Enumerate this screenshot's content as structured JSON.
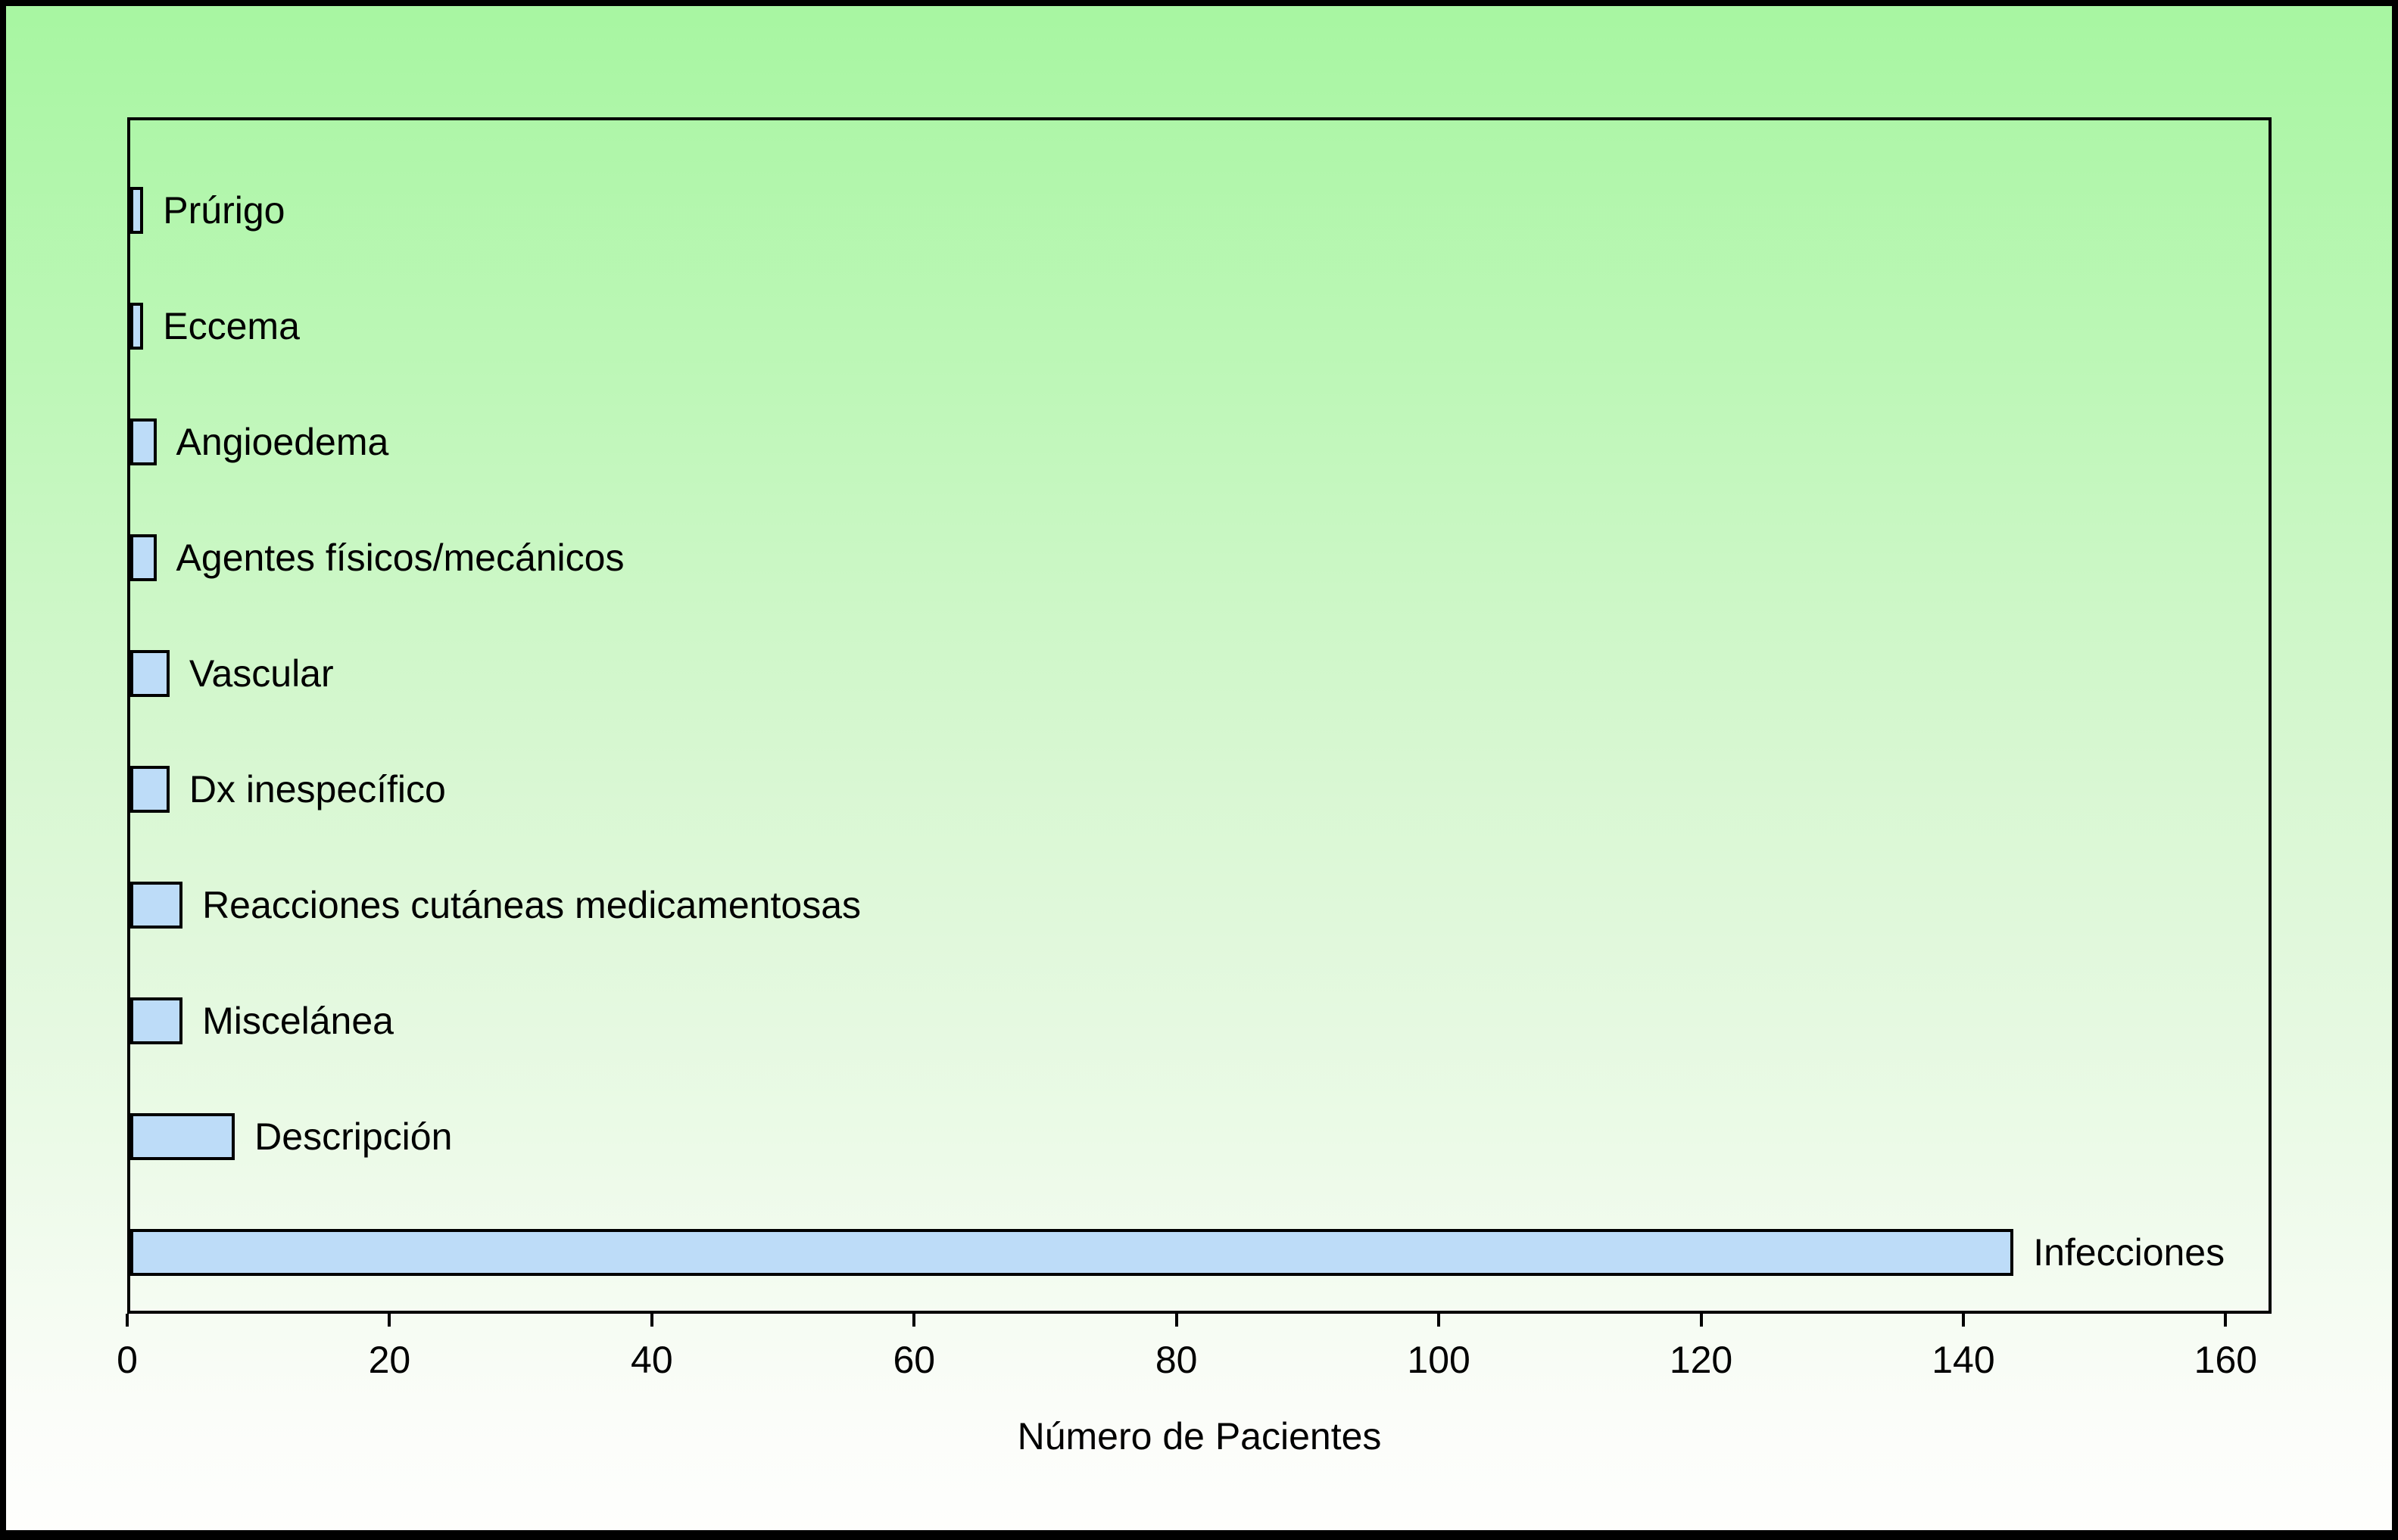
{
  "chart_data": {
    "type": "bar",
    "orientation": "horizontal",
    "title": "",
    "xlabel": "Número de Pacientes",
    "ylabel": "",
    "categories": [
      "Prúrigo",
      "Eccema",
      "Angioedema",
      "Agentes físicos/mecánicos",
      "Vascular",
      "Dx inespecífico",
      "Reacciones cutáneas medicamentosas",
      "Miscelánea",
      "Descripción",
      "Infecciones"
    ],
    "values": [
      1,
      1,
      2,
      2,
      3,
      3,
      4,
      4,
      8,
      144
    ],
    "x_ticks": [
      0,
      20,
      40,
      60,
      80,
      100,
      120,
      140,
      160
    ],
    "xlim": [
      0,
      163.5
    ],
    "grid": false,
    "legend": false,
    "bar_color": "#bddcf8",
    "bar_border_color": "#000000",
    "axis_color": "#000000",
    "background_top_color": "#a7f6a1",
    "background_bottom_color": "#fefefd"
  }
}
